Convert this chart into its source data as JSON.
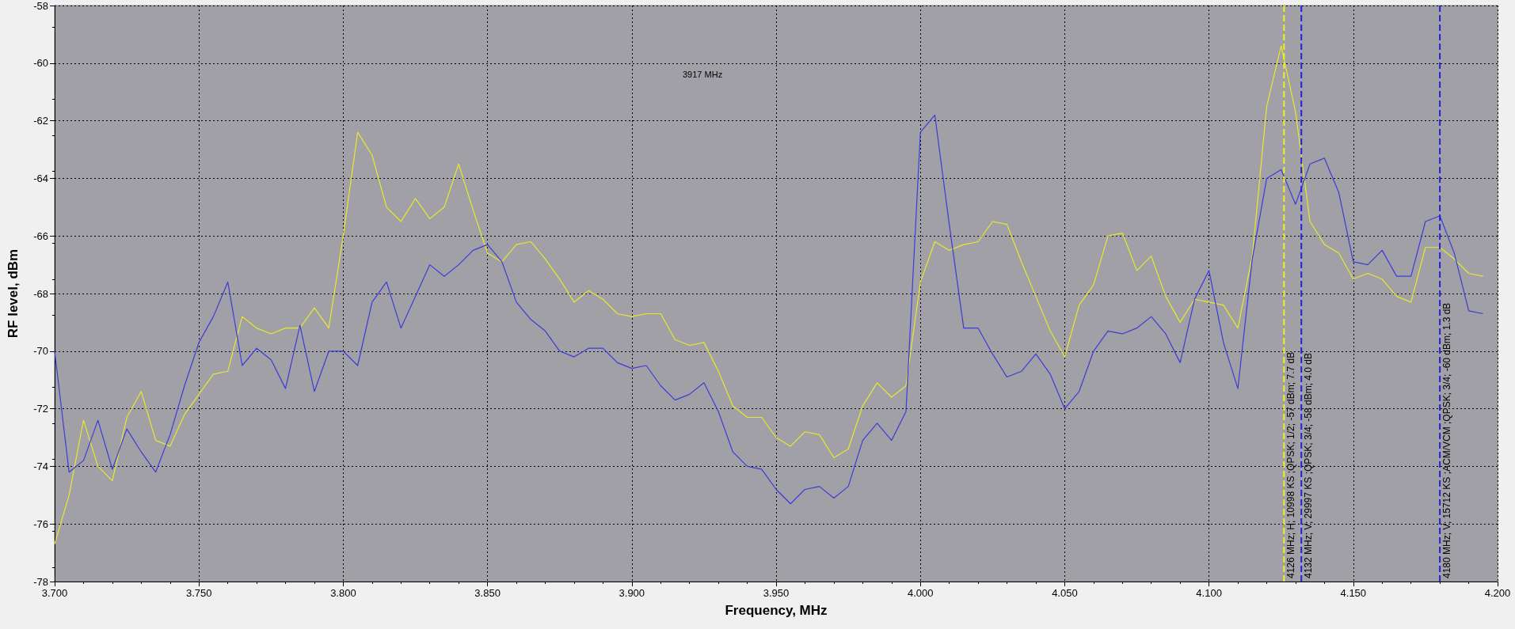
{
  "chart_data": {
    "type": "line",
    "xlabel": "Frequency, MHz",
    "ylabel": "RF level, dBm",
    "x": [
      3.7,
      3.705,
      3.71,
      3.715,
      3.72,
      3.725,
      3.73,
      3.735,
      3.74,
      3.745,
      3.75,
      3.755,
      3.76,
      3.765,
      3.77,
      3.775,
      3.78,
      3.785,
      3.79,
      3.795,
      3.8,
      3.805,
      3.81,
      3.815,
      3.82,
      3.825,
      3.83,
      3.835,
      3.84,
      3.845,
      3.85,
      3.855,
      3.86,
      3.865,
      3.87,
      3.875,
      3.88,
      3.885,
      3.89,
      3.895,
      3.9,
      3.905,
      3.91,
      3.915,
      3.92,
      3.925,
      3.93,
      3.935,
      3.94,
      3.945,
      3.95,
      3.955,
      3.96,
      3.965,
      3.97,
      3.975,
      3.98,
      3.985,
      3.99,
      3.995,
      4.0,
      4.005,
      4.01,
      4.015,
      4.02,
      4.025,
      4.03,
      4.035,
      4.04,
      4.045,
      4.05,
      4.055,
      4.06,
      4.065,
      4.07,
      4.075,
      4.08,
      4.085,
      4.09,
      4.095,
      4.1,
      4.105,
      4.11,
      4.115,
      4.12,
      4.125,
      4.13,
      4.135,
      4.14,
      4.145,
      4.15,
      4.155,
      4.16,
      4.165,
      4.17,
      4.175,
      4.18,
      4.185,
      4.19,
      4.195
    ],
    "series": [
      {
        "color": "#e8e830",
        "values": [
          -76.7,
          -75.0,
          -72.4,
          -74.0,
          -74.5,
          -72.3,
          -71.4,
          -73.1,
          -73.3,
          -72.2,
          -71.5,
          -70.8,
          -70.7,
          -68.8,
          -69.2,
          -69.4,
          -69.2,
          -69.2,
          -68.5,
          -69.2,
          -66.0,
          -62.4,
          -63.2,
          -65.0,
          -65.5,
          -64.7,
          -65.4,
          -65.0,
          -63.5,
          -65.1,
          -66.6,
          -66.9,
          -66.3,
          -66.2,
          -66.8,
          -67.5,
          -68.3,
          -67.9,
          -68.2,
          -68.7,
          -68.8,
          -68.7,
          -68.7,
          -69.6,
          -69.8,
          -69.7,
          -70.7,
          -71.9,
          -72.3,
          -72.3,
          -73.0,
          -73.3,
          -72.8,
          -72.9,
          -73.7,
          -73.4,
          -71.9,
          -71.1,
          -71.6,
          -71.2,
          -67.6,
          -66.2,
          -66.5,
          -66.3,
          -66.2,
          -65.5,
          -65.6,
          -66.9,
          -68.1,
          -69.3,
          -70.2,
          -68.4,
          -67.7,
          -66.0,
          -65.9,
          -67.2,
          -66.7,
          -68.1,
          -69.0,
          -68.2,
          -68.3,
          -68.4,
          -69.2,
          -66.7,
          -61.5,
          -59.4,
          -61.7,
          -65.5,
          -66.3,
          -66.6,
          -67.5,
          -67.3,
          -67.5,
          -68.1,
          -68.3,
          -66.4,
          -66.4,
          -66.8,
          -67.3,
          -67.4
        ]
      },
      {
        "color": "#3c3cd8",
        "values": [
          -70.0,
          -74.2,
          -73.8,
          -72.4,
          -74.1,
          -72.7,
          -73.5,
          -74.2,
          -72.9,
          -71.2,
          -69.7,
          -68.8,
          -67.6,
          -70.5,
          -69.9,
          -70.3,
          -71.3,
          -69.1,
          -71.4,
          -70.0,
          -70.0,
          -70.5,
          -68.3,
          -67.6,
          -69.2,
          -68.1,
          -67.0,
          -67.4,
          -67.0,
          -66.5,
          -66.3,
          -66.9,
          -68.3,
          -68.9,
          -69.3,
          -70.0,
          -70.2,
          -69.9,
          -69.9,
          -70.4,
          -70.6,
          -70.5,
          -71.2,
          -71.7,
          -71.5,
          -71.1,
          -72.1,
          -73.5,
          -74.0,
          -74.1,
          -74.8,
          -75.3,
          -74.8,
          -74.7,
          -75.1,
          -74.7,
          -73.1,
          -72.5,
          -73.1,
          -72.1,
          -62.4,
          -61.8,
          -65.6,
          -69.2,
          -69.2,
          -70.1,
          -70.9,
          -70.7,
          -70.1,
          -70.8,
          -72.0,
          -71.4,
          -70.0,
          -69.3,
          -69.4,
          -69.2,
          -68.8,
          -69.4,
          -70.4,
          -68.2,
          -67.2,
          -69.7,
          -71.3,
          -66.8,
          -64.0,
          -63.7,
          -64.9,
          -63.5,
          -63.3,
          -64.5,
          -66.9,
          -67.0,
          -66.5,
          -67.4,
          -67.4,
          -65.5,
          -65.3,
          -66.6,
          -68.6,
          -68.7
        ]
      }
    ],
    "xlim": [
      3.7,
      4.2
    ],
    "xticks": [
      {
        "value": 3.7,
        "label": "3.700"
      },
      {
        "value": 3.75,
        "label": "3.750"
      },
      {
        "value": 3.8,
        "label": "3.800"
      },
      {
        "value": 3.85,
        "label": "3.850"
      },
      {
        "value": 3.9,
        "label": "3.900"
      },
      {
        "value": 3.95,
        "label": "3.950"
      },
      {
        "value": 4.0,
        "label": "4.000"
      },
      {
        "value": 4.05,
        "label": "4.050"
      },
      {
        "value": 4.1,
        "label": "4.100"
      },
      {
        "value": 4.15,
        "label": "4.150"
      },
      {
        "value": 4.2,
        "label": "4.200"
      }
    ],
    "ylim": [
      -78,
      -58
    ],
    "yticks": [
      -78,
      -76,
      -74,
      -72,
      -70,
      -68,
      -66,
      -64,
      -62,
      -60,
      -58
    ],
    "grid": true,
    "ref_lines": [
      {
        "axis": "x",
        "value": 4.126,
        "label": "4126 MHz; H; 10998 KS ;QPSK; 1/2; -57 dBm; 7.7 dB",
        "color": "#f0f020",
        "line_style": "dashed"
      },
      {
        "axis": "x",
        "value": 4.132,
        "label": "4132 MHz; V; 29997 KS ;QPSK; 3/4; -58 dBm; 4.0 dB",
        "color": "#2020e0",
        "line_style": "dashed"
      },
      {
        "axis": "x",
        "value": 4.18,
        "label": "4180 MHz; V; 15712 KS ;ACM/VCM ;QPSK; 3/4; -60 dBm; 1.3 dB",
        "color": "#2020e0",
        "line_style": "dashed"
      }
    ],
    "annotations": [
      "3917 MHz"
    ]
  }
}
